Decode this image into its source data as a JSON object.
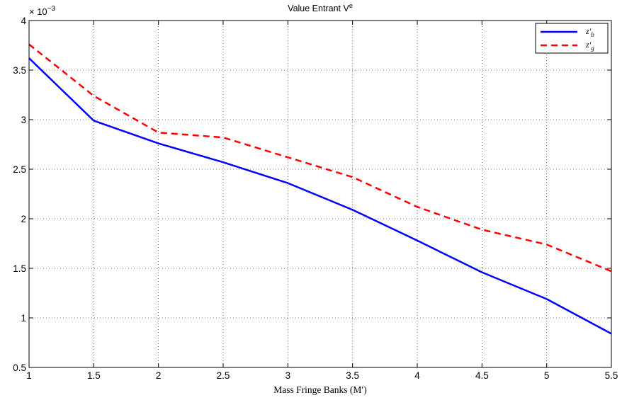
{
  "chart_data": {
    "type": "line",
    "title": "Value Entrant V",
    "title_superscript": "e",
    "xlabel": "Mass Fringe Banks (M′)",
    "ylabel": "",
    "y_multiplier_base": "× 10",
    "y_multiplier_exp": "−3",
    "xlim": [
      1,
      5.5
    ],
    "ylim": [
      0.5,
      4
    ],
    "x_ticks": [
      1,
      1.5,
      2,
      2.5,
      3,
      3.5,
      4,
      4.5,
      5,
      5.5
    ],
    "x_tick_labels": [
      "1",
      "1.5",
      "2",
      "2.5",
      "3",
      "3.5",
      "4",
      "4.5",
      "5",
      "5.5"
    ],
    "y_ticks": [
      0.5,
      1,
      1.5,
      2,
      2.5,
      3,
      3.5,
      4
    ],
    "y_tick_labels": [
      "0.5",
      "1",
      "1.5",
      "2",
      "2.5",
      "3",
      "3.5",
      "4"
    ],
    "grid": true,
    "legend_position": "top-right",
    "x": [
      1,
      1.5,
      2,
      2.5,
      3,
      3.5,
      4,
      4.5,
      5,
      5.5
    ],
    "series": [
      {
        "name": "z′b",
        "name_main": "z′",
        "name_sub": "b",
        "color": "#0000ff",
        "dash": "solid",
        "values": [
          3.62,
          2.99,
          2.76,
          2.57,
          2.36,
          2.09,
          1.78,
          1.46,
          1.19,
          0.84
        ]
      },
      {
        "name": "z′g",
        "name_main": "z′",
        "name_sub": "g",
        "color": "#ff0000",
        "dash": "dashed",
        "values": [
          3.76,
          3.24,
          2.87,
          2.82,
          2.62,
          2.42,
          2.12,
          1.89,
          1.74,
          1.47
        ]
      }
    ]
  }
}
